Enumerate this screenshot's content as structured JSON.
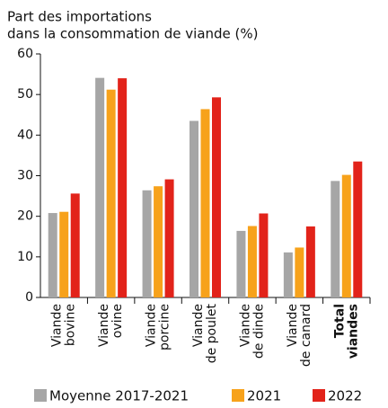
{
  "chart_data": {
    "type": "bar",
    "title": [
      "Part des importations",
      "dans la consommation de viande (%)"
    ],
    "categories": [
      [
        "Viande",
        "bovine"
      ],
      [
        "Viande",
        "ovine"
      ],
      [
        "Viande",
        "porcine"
      ],
      [
        "Viande",
        "de poulet"
      ],
      [
        "Viande",
        "de dinde"
      ],
      [
        "Viande",
        "de canard"
      ],
      [
        "Total",
        "viandes"
      ]
    ],
    "series": [
      {
        "name": "Moyenne 2017-2021",
        "color": "#a6a6a6",
        "values": [
          20.8,
          54.1,
          26.4,
          43.5,
          16.4,
          11.1,
          28.7
        ]
      },
      {
        "name": "2021",
        "color": "#f7a21b",
        "values": [
          21.1,
          51.2,
          27.4,
          46.4,
          17.6,
          12.3,
          30.2
        ]
      },
      {
        "name": "2022",
        "color": "#e2231a",
        "values": [
          25.6,
          54.0,
          29.1,
          49.3,
          20.7,
          17.5,
          33.5
        ]
      }
    ],
    "ylim": [
      0,
      60
    ],
    "yticks": [
      0,
      10,
      20,
      30,
      40,
      50,
      60
    ],
    "grid": false
  }
}
